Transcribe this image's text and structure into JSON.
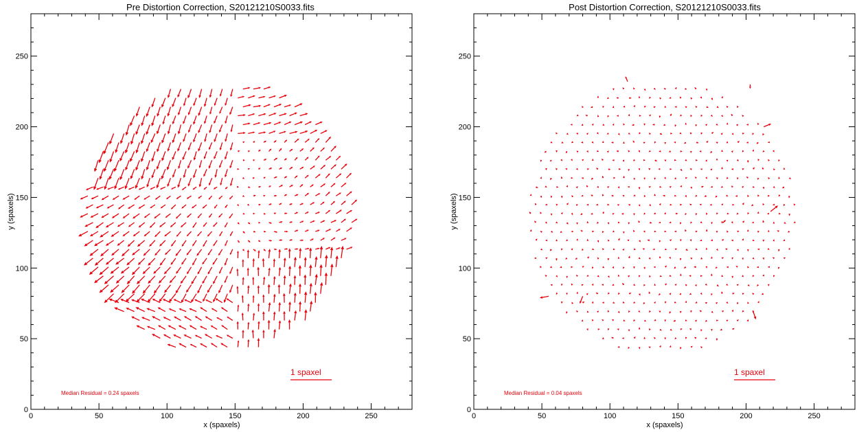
{
  "chart_data": [
    {
      "type": "quiver",
      "title": "Pre Distortion Correction, S20121210S0033.fits",
      "xlabel": "x (spaxels)",
      "ylabel": "y (spaxels)",
      "xlim": [
        0,
        280
      ],
      "ylim": [
        0,
        280
      ],
      "xticks": [
        0,
        50,
        100,
        150,
        200,
        250
      ],
      "yticks": [
        0,
        50,
        100,
        150,
        200,
        250
      ],
      "scale_bar_label": "1 spaxel",
      "scale_bar": {
        "x": 190,
        "y": 20,
        "length_spaxels": 1,
        "length_data": 30
      },
      "annotation": "Median Residual = 0.24 spaxels",
      "arrow_color": "#e8000b"
    },
    {
      "type": "quiver",
      "title": "Post Distortion Correction, S20121210S0033.fits",
      "xlabel": "x (spaxels)",
      "ylabel": "y (spaxels)",
      "xlim": [
        0,
        280
      ],
      "ylim": [
        0,
        280
      ],
      "xticks": [
        0,
        50,
        100,
        150,
        200,
        250
      ],
      "yticks": [
        0,
        50,
        100,
        150,
        200,
        250
      ],
      "scale_bar_label": "1 spaxel",
      "scale_bar": {
        "x": 190,
        "y": 20,
        "length_spaxels": 1,
        "length_data": 30
      },
      "annotation": "Median Residual = 0.04 spaxels",
      "arrow_color": "#e8000b"
    }
  ]
}
